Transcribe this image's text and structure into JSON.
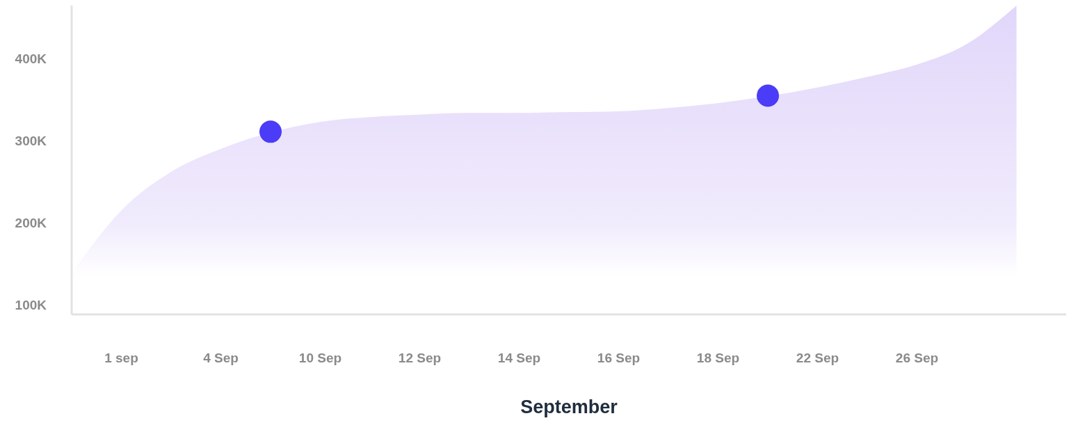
{
  "chart_data": {
    "type": "area",
    "xlabel": "September",
    "categories": [
      null,
      "1 sep",
      null,
      "4 Sep",
      null,
      "10 Sep",
      null,
      "12 Sep",
      null,
      "14 Sep",
      null,
      "16 Sep",
      null,
      "18 Sep",
      null,
      "22 Sep",
      null,
      "26 Sep",
      null,
      null,
      null
    ],
    "ylim": [
      88000,
      465000
    ],
    "yticks": [
      {
        "value": 100000,
        "label": "100K"
      },
      {
        "value": 200000,
        "label": "200K"
      },
      {
        "value": 300000,
        "label": "300K"
      },
      {
        "value": 400000,
        "label": "400K"
      }
    ],
    "series": [
      {
        "color": "#c8b4f6",
        "values": [
          138000,
          215000,
          262000,
          290000,
          null,
          323000,
          329000,
          332000,
          334000,
          334000,
          335000,
          336000,
          340000,
          346000,
          null,
          365000,
          378000,
          393000,
          418000,
          465000,
          null
        ]
      },
      {
        "type": "scatter",
        "color": "#4a3cf7",
        "marker": "circle",
        "values": [
          null,
          null,
          null,
          null,
          311000,
          null,
          null,
          null,
          null,
          null,
          null,
          null,
          null,
          null,
          355000,
          null,
          null,
          null,
          null,
          null,
          null
        ]
      }
    ]
  }
}
